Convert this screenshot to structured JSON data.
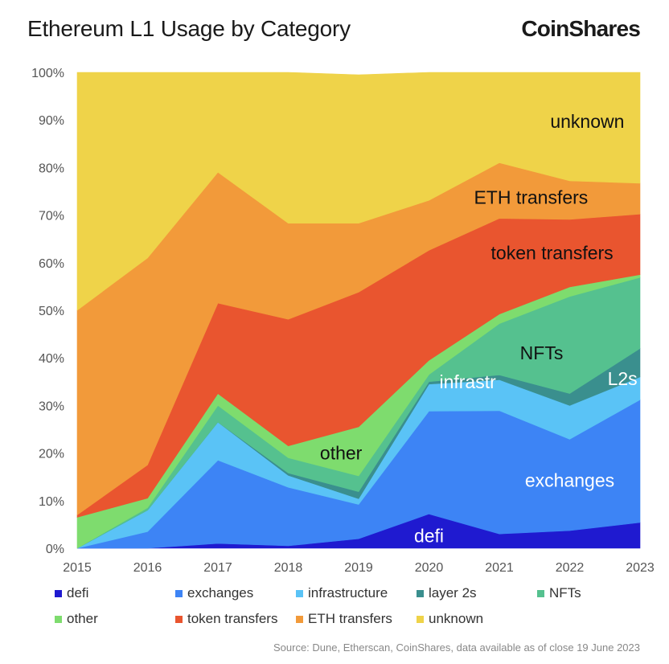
{
  "header": {
    "title": "Ethereum L1 Usage by Category",
    "brand": "CoinShares"
  },
  "source": "Source: Dune, Etherscan, CoinShares, data available as of close 19 June 2023",
  "chart_data": {
    "type": "area",
    "stacked": true,
    "title": "Ethereum L1 Usage by Category",
    "x": [
      "2015",
      "2016",
      "2017",
      "2018",
      "2019",
      "2020",
      "2021",
      "2022",
      "2023"
    ],
    "ylim": [
      0,
      100
    ],
    "yticks": [
      "0%",
      "10%",
      "20%",
      "30%",
      "40%",
      "50%",
      "60%",
      "70%",
      "80%",
      "90%",
      "100%"
    ],
    "grid": false,
    "legend_position": "bottom",
    "series": [
      {
        "name": "defi",
        "color": "#1f1ad0",
        "values": [
          0,
          0,
          1,
          0.5,
          2,
          7.2,
          3,
          3.7,
          5.4
        ]
      },
      {
        "name": "exchanges",
        "color": "#3d84f5",
        "values": [
          0,
          3.5,
          17.5,
          12.3,
          7.2,
          21.6,
          25.9,
          19.2,
          25.8
        ]
      },
      {
        "name": "infrastructure",
        "color": "#5ac3f6",
        "values": [
          0,
          4.5,
          8,
          2.5,
          1.2,
          5.7,
          6.5,
          7.1,
          4.8
        ]
      },
      {
        "name": "layer 2s",
        "color": "#3a8f8e",
        "values": [
          0,
          0,
          0,
          0.5,
          1.5,
          0.5,
          1,
          2.5,
          6
        ]
      },
      {
        "name": "NFTs",
        "color": "#55c18f",
        "values": [
          0,
          0.5,
          3.5,
          3.2,
          3.3,
          1.5,
          10.8,
          20.4,
          14.9
        ]
      },
      {
        "name": "other",
        "color": "#7edc6e",
        "values": [
          6.5,
          2,
          2.5,
          2.5,
          10.3,
          3,
          2,
          2,
          0.6
        ]
      },
      {
        "name": "token transfers",
        "color": "#e9552f",
        "values": [
          0.5,
          7,
          19,
          26.6,
          28.3,
          23.1,
          20.1,
          14.2,
          12.7
        ]
      },
      {
        "name": "ETH transfers",
        "color": "#f29a3a",
        "values": [
          43,
          43.5,
          27.5,
          20.2,
          14.5,
          10.5,
          11.7,
          8.1,
          6.5
        ]
      },
      {
        "name": "unknown",
        "color": "#efd349",
        "values": [
          50,
          39,
          21,
          31.7,
          31.2,
          26.9,
          19,
          22.8,
          23.3
        ]
      }
    ],
    "annotations": [
      {
        "text": "unknown",
        "series": "unknown"
      },
      {
        "text": "ETH transfers",
        "series": "ETH transfers"
      },
      {
        "text": "token transfers",
        "series": "token transfers"
      },
      {
        "text": "NFTs",
        "series": "NFTs"
      },
      {
        "text": "L2s",
        "series": "layer 2s"
      },
      {
        "text": "infrastr",
        "series": "infrastructure"
      },
      {
        "text": "other",
        "series": "other"
      },
      {
        "text": "exchanges",
        "series": "exchanges"
      },
      {
        "text": "defi",
        "series": "defi"
      }
    ]
  }
}
